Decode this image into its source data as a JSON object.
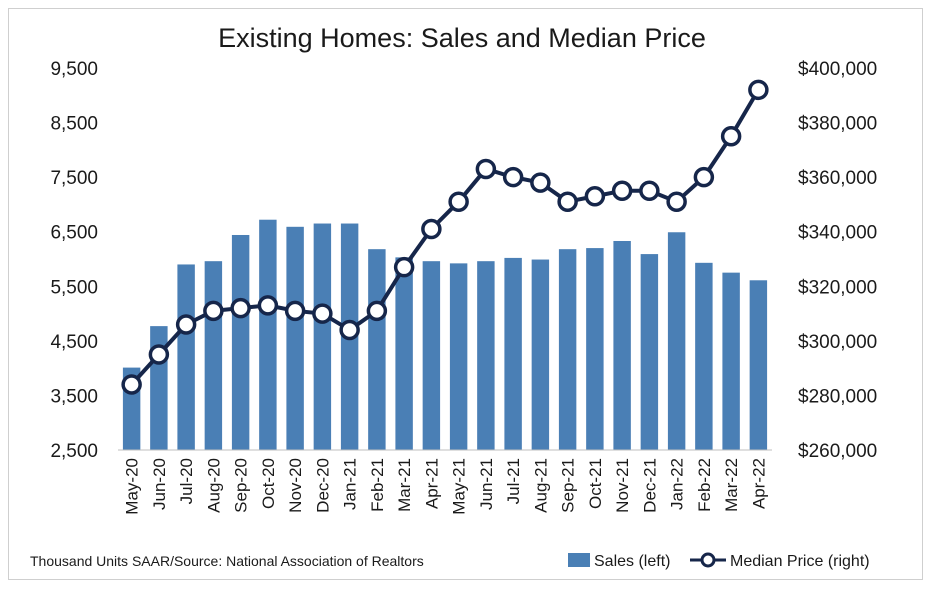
{
  "chart_data": {
    "type": "bar+line",
    "title": "Existing Homes: Sales and Median Price",
    "categories": [
      "May-20",
      "Jun-20",
      "Jul-20",
      "Aug-20",
      "Sep-20",
      "Oct-20",
      "Nov-20",
      "Dec-20",
      "Jan-21",
      "Feb-21",
      "Mar-21",
      "Apr-21",
      "May-21",
      "Jun-21",
      "Jul-21",
      "Aug-21",
      "Sep-21",
      "Oct-21",
      "Nov-21",
      "Dec-21",
      "Jan-22",
      "Feb-22",
      "Mar-22",
      "Apr-22"
    ],
    "series": [
      {
        "name": "Sales (left)",
        "type": "bar",
        "axis": "left",
        "values": [
          4010,
          4770,
          5900,
          5960,
          6440,
          6720,
          6590,
          6650,
          6650,
          6180,
          6030,
          5960,
          5920,
          5960,
          6020,
          5990,
          6180,
          6200,
          6330,
          6090,
          6490,
          5930,
          5750,
          5610
        ]
      },
      {
        "name": "Median Price (right)",
        "type": "line",
        "axis": "right",
        "values": [
          284000,
          295000,
          306000,
          311000,
          312000,
          313000,
          311000,
          310000,
          304000,
          311000,
          327000,
          341000,
          351000,
          363000,
          360000,
          358000,
          351000,
          353000,
          355000,
          355000,
          351000,
          360000,
          375000,
          392000
        ]
      }
    ],
    "left_axis": {
      "ylim": [
        2500,
        9500
      ],
      "ticks": [
        "2,500",
        "3,500",
        "4,500",
        "5,500",
        "6,500",
        "7,500",
        "8,500",
        "9,500"
      ]
    },
    "right_axis": {
      "ylim": [
        260000,
        400000
      ],
      "ticks": [
        "$260,000",
        "$280,000",
        "$300,000",
        "$320,000",
        "$340,000",
        "$360,000",
        "$380,000",
        "$400,000"
      ]
    },
    "grid": false,
    "legend_position": "bottom-right",
    "footnote": "Thousand Units SAAR/Source: National Association of Realtors",
    "colors": {
      "bar": "#4a7fb5",
      "line": "#16264a",
      "marker_fill": "#ffffff"
    }
  }
}
